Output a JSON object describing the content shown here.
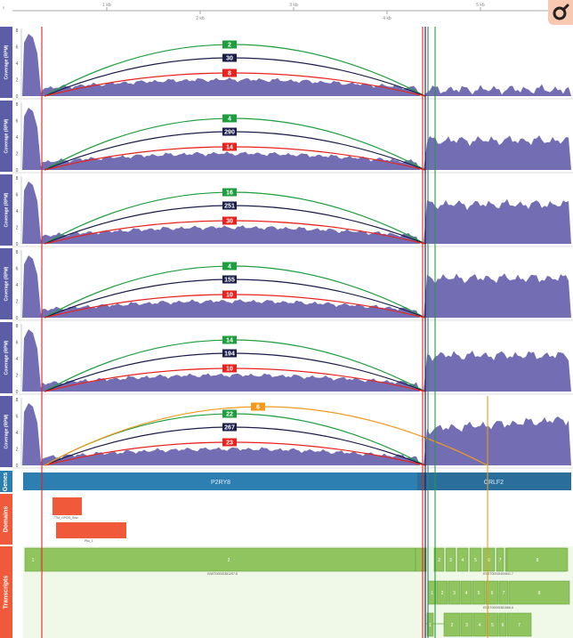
{
  "ruler": {
    "ticks": [
      "1 kb",
      "2 kb",
      "3 kb",
      "4 kb",
      "5 kb"
    ],
    "start_label": "0"
  },
  "track_labels": {
    "coverage": "Coverage (RPM)",
    "genes": "Genes",
    "domains": "Domains",
    "transcripts": "Transcripts"
  },
  "coverage_y_ticks": [
    "8",
    "6",
    "4",
    "2",
    "0"
  ],
  "junction_colors": {
    "green": "#1f9e3f",
    "navy": "#1c1c4a",
    "red": "#e8231f",
    "orange": "#f39a1e",
    "coverage": "#6c66b0"
  },
  "samples": [
    {
      "junctions": {
        "green": "2",
        "navy": "30",
        "red": "8"
      }
    },
    {
      "junctions": {
        "green": "4",
        "navy": "290",
        "red": "14"
      }
    },
    {
      "junctions": {
        "green": "16",
        "navy": "251",
        "red": "30"
      }
    },
    {
      "junctions": {
        "green": "4",
        "navy": "155",
        "red": "10"
      }
    },
    {
      "junctions": {
        "green": "14",
        "navy": "194",
        "red": "10"
      }
    },
    {
      "junctions": {
        "orange": "6",
        "green": "22",
        "navy": "267",
        "red": "23"
      }
    }
  ],
  "genes": {
    "left": "P2RY8",
    "right": "CRLF2"
  },
  "domains": [
    {
      "label": "7TM_GPCR_Srsx"
    },
    {
      "label": "Pkc_1"
    }
  ],
  "transcripts": [
    {
      "exons": [
        "1",
        "2",
        "3",
        "4",
        "5",
        "6",
        "7",
        "8"
      ],
      "label_left": "ENST00000381297.8",
      "label_right": "ENST00000400841.7"
    },
    {
      "exons": [
        "1",
        "2",
        "3",
        "4",
        "5",
        "6",
        "7",
        "8"
      ],
      "label_right": "ENST00000381566.6"
    },
    {
      "exons": [
        "1",
        "2",
        "3",
        "4",
        "5",
        "6",
        "7"
      ]
    }
  ]
}
